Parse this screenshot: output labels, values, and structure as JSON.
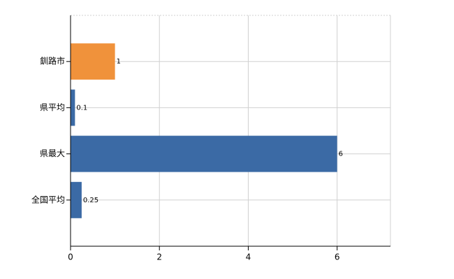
{
  "chart_data": {
    "type": "bar",
    "orientation": "horizontal",
    "categories": [
      "釧路市",
      "県平均",
      "県最大",
      "全国平均"
    ],
    "values": [
      1,
      0.1,
      6,
      0.25
    ],
    "colors": [
      "#f0923b",
      "#3b6aa5",
      "#3b6aa5",
      "#3b6aa5"
    ],
    "xlim": [
      0,
      7.2
    ],
    "xticks": [
      0,
      2,
      4,
      6
    ],
    "grid": true
  }
}
